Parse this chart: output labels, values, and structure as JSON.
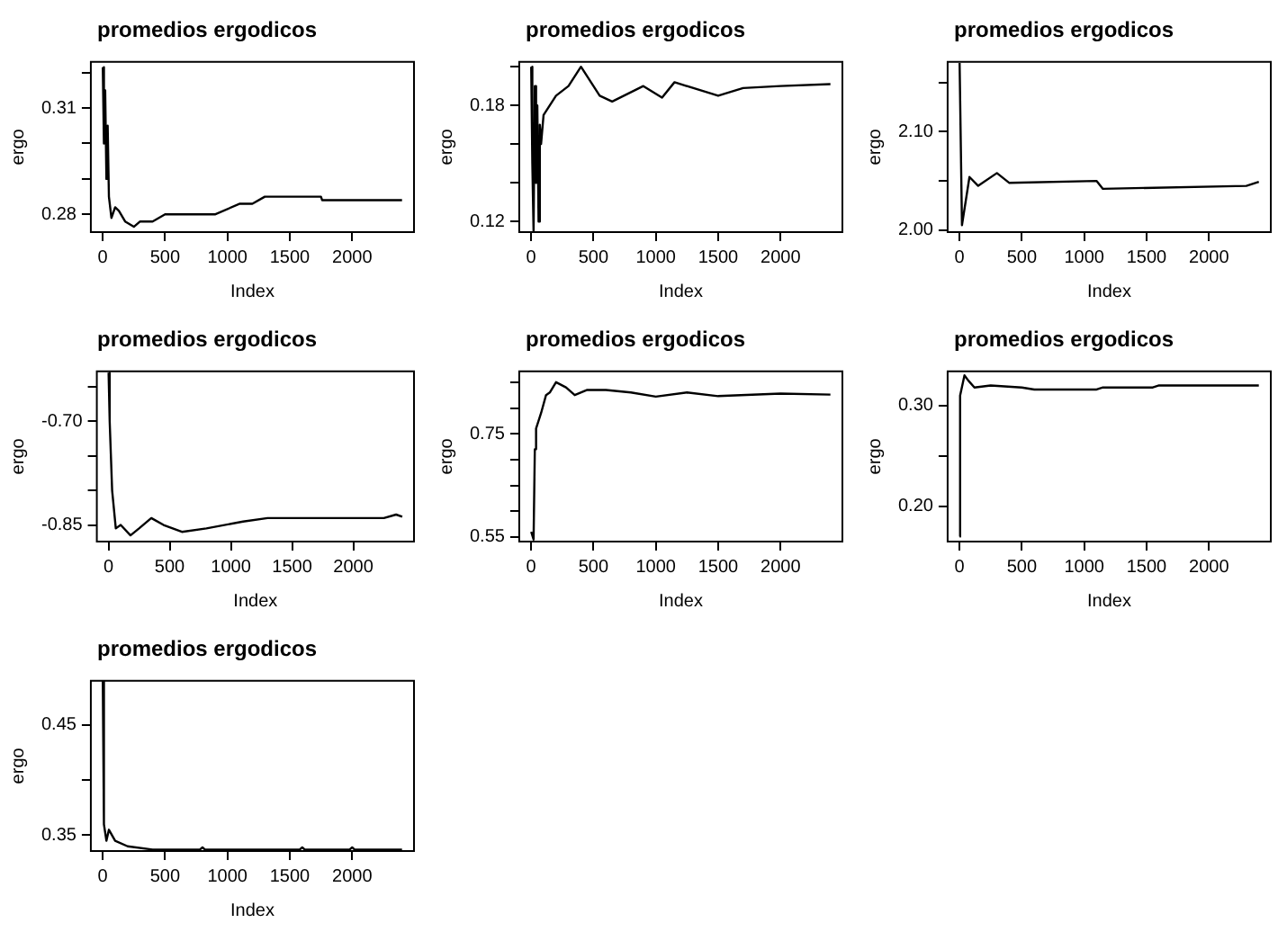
{
  "chart_data": [
    {
      "type": "line",
      "title": "promedios ergodicos",
      "xlabel": "Index",
      "ylabel": "ergo",
      "color": "#000000",
      "grid": false,
      "marker": "none",
      "xlim": [
        -95,
        2496
      ],
      "ylim": [
        0.275,
        0.323
      ],
      "xticks": [
        0,
        500,
        1000,
        1500,
        2000
      ],
      "yticks": [
        0.28,
        {
          "value": 0.29,
          "label": null
        },
        {
          "value": 0.3,
          "label": null
        },
        0.31,
        {
          "value": 0.32,
          "label": null
        }
      ],
      "x": [
        1,
        10,
        20,
        30,
        40,
        50,
        70,
        100,
        130,
        180,
        250,
        300,
        400,
        500,
        700,
        900,
        1100,
        1200,
        1300,
        1500,
        1750,
        1760,
        2400
      ],
      "values": [
        0.3215,
        0.3,
        0.315,
        0.29,
        0.305,
        0.285,
        0.279,
        0.282,
        0.281,
        0.278,
        0.2765,
        0.278,
        0.278,
        0.28,
        0.28,
        0.28,
        0.283,
        0.283,
        0.285,
        0.285,
        0.285,
        0.284,
        0.284
      ]
    },
    {
      "type": "line",
      "title": "promedios ergodicos",
      "xlabel": "Index",
      "ylabel": "ergo",
      "color": "#000000",
      "grid": false,
      "marker": "none",
      "xlim": [
        -95,
        2496
      ],
      "ylim": [
        0.1145,
        0.2025
      ],
      "xticks": [
        0,
        500,
        1000,
        1500,
        2000
      ],
      "yticks": [
        0.12,
        {
          "value": 0.14,
          "label": null
        },
        {
          "value": 0.16,
          "label": null
        },
        0.18,
        {
          "value": 0.2,
          "label": null
        }
      ],
      "x": [
        1,
        10,
        20,
        30,
        40,
        50,
        60,
        70,
        80,
        100,
        150,
        200,
        300,
        400,
        550,
        650,
        900,
        1050,
        1150,
        1500,
        1700,
        2000,
        2400
      ],
      "values": [
        0.2,
        0.15,
        0.115,
        0.19,
        0.14,
        0.18,
        0.12,
        0.17,
        0.16,
        0.175,
        0.18,
        0.185,
        0.19,
        0.2,
        0.185,
        0.182,
        0.19,
        0.184,
        0.192,
        0.185,
        0.189,
        0.19,
        0.191
      ]
    },
    {
      "type": "line",
      "title": "promedios ergodicos",
      "xlabel": "Index",
      "ylabel": "ergo",
      "color": "#000000",
      "grid": false,
      "marker": "none",
      "xlim": [
        -95,
        2496
      ],
      "ylim": [
        1.998,
        2.171
      ],
      "xticks": [
        0,
        500,
        1000,
        1500,
        2000
      ],
      "yticks": [
        {
          "value": 2,
          "label": "2.00"
        },
        {
          "value": 2.05,
          "label": null
        },
        {
          "value": 2.1,
          "label": "2.10"
        },
        {
          "value": 2.15,
          "label": null
        }
      ],
      "x": [
        1,
        20,
        80,
        150,
        300,
        400,
        1100,
        1150,
        2300,
        2400
      ],
      "values": [
        2.17,
        2.005,
        2.054,
        2.045,
        2.058,
        2.048,
        2.05,
        2.042,
        2.045,
        2.049
      ]
    },
    {
      "type": "line",
      "title": "promedios ergodicos",
      "xlabel": "Index",
      "ylabel": "ergo",
      "color": "#000000",
      "grid": false,
      "marker": "none",
      "xlim": [
        -95,
        2496
      ],
      "ylim": [
        -0.874,
        -0.628
      ],
      "xticks": [
        0,
        500,
        1000,
        1500,
        2000
      ],
      "yticks": [
        -0.85,
        {
          "value": -0.8,
          "label": null
        },
        {
          "value": -0.75,
          "label": null
        },
        {
          "value": -0.7,
          "label": "-0.70"
        },
        {
          "value": -0.65,
          "label": null
        }
      ],
      "x": [
        1,
        10,
        30,
        60,
        100,
        180,
        250,
        350,
        450,
        600,
        800,
        1100,
        1300,
        2250,
        2350,
        2400
      ],
      "values": [
        -0.63,
        -0.7,
        -0.8,
        -0.855,
        -0.85,
        -0.865,
        -0.855,
        -0.84,
        -0.85,
        -0.86,
        -0.855,
        -0.845,
        -0.84,
        -0.84,
        -0.835,
        -0.838
      ]
    },
    {
      "type": "line",
      "title": "promedios ergodicos",
      "xlabel": "Index",
      "ylabel": "ergo",
      "color": "#000000",
      "grid": false,
      "marker": "none",
      "xlim": [
        -95,
        2496
      ],
      "ylim": [
        0.541,
        0.871
      ],
      "xticks": [
        0,
        500,
        1000,
        1500,
        2000
      ],
      "yticks": [
        0.55,
        {
          "value": 0.6,
          "label": null
        },
        {
          "value": 0.65,
          "label": null
        },
        {
          "value": 0.7,
          "label": null
        },
        0.75,
        {
          "value": 0.8,
          "label": null
        },
        {
          "value": 0.85,
          "label": null
        }
      ],
      "x": [
        1,
        20,
        30,
        40,
        80,
        120,
        150,
        200,
        280,
        350,
        450,
        600,
        800,
        1000,
        1250,
        1500,
        2000,
        2400
      ],
      "values": [
        0.56,
        0.545,
        0.72,
        0.76,
        0.79,
        0.825,
        0.83,
        0.85,
        0.84,
        0.825,
        0.835,
        0.835,
        0.83,
        0.822,
        0.83,
        0.823,
        0.828,
        0.826
      ]
    },
    {
      "type": "line",
      "title": "promedios ergodicos",
      "xlabel": "Index",
      "ylabel": "ergo",
      "color": "#000000",
      "grid": false,
      "marker": "none",
      "xlim": [
        -95,
        2496
      ],
      "ylim": [
        0.165,
        0.334
      ],
      "xticks": [
        0,
        500,
        1000,
        1500,
        2000
      ],
      "yticks": [
        {
          "value": 0.2,
          "label": "0.20"
        },
        {
          "value": 0.25,
          "label": null
        },
        {
          "value": 0.3,
          "label": "0.30"
        }
      ],
      "x": [
        1,
        5,
        40,
        70,
        120,
        250,
        500,
        600,
        1100,
        1150,
        1550,
        1600,
        2400
      ],
      "values": [
        0.17,
        0.31,
        0.33,
        0.325,
        0.318,
        0.32,
        0.318,
        0.316,
        0.316,
        0.318,
        0.318,
        0.32,
        0.32
      ]
    },
    {
      "type": "line",
      "title": "promedios ergodicos",
      "xlabel": "Index",
      "ylabel": "ergo",
      "color": "#000000",
      "grid": false,
      "marker": "none",
      "xlim": [
        -95,
        2496
      ],
      "ylim": [
        0.3357,
        0.49
      ],
      "xticks": [
        0,
        500,
        1000,
        1500,
        2000
      ],
      "yticks": [
        0.35,
        {
          "value": 0.4,
          "label": null
        },
        0.45
      ],
      "x": [
        1,
        10,
        30,
        50,
        100,
        200,
        400,
        780,
        800,
        820,
        1000,
        1580,
        1600,
        1620,
        1980,
        2000,
        2020,
        2400
      ],
      "values": [
        0.49,
        0.36,
        0.345,
        0.355,
        0.345,
        0.34,
        0.337,
        0.337,
        0.339,
        0.337,
        0.337,
        0.337,
        0.339,
        0.337,
        0.337,
        0.339,
        0.337,
        0.337
      ]
    }
  ]
}
